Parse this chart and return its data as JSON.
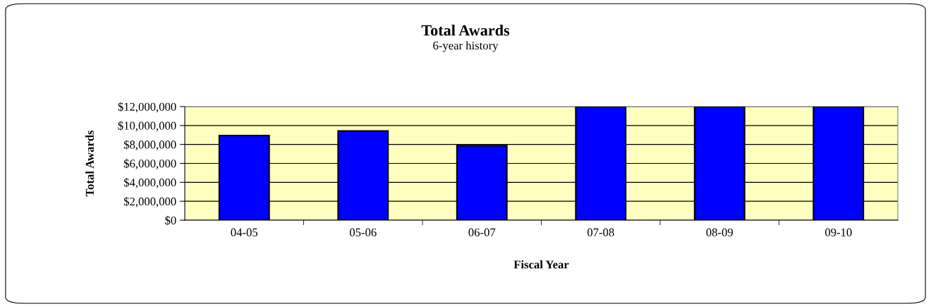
{
  "chart_data": {
    "type": "bar",
    "title": "Total Awards",
    "subtitle": "6-year history",
    "xlabel": "Fiscal Year",
    "ylabel": "Total Awards",
    "categories": [
      "04-05",
      "05-06",
      "06-07",
      "07-08",
      "08-09",
      "09-10"
    ],
    "values": [
      8950000,
      9420000,
      7870000,
      12000000,
      12000000,
      12000000
    ],
    "color": "#0000ff",
    "ylim": [
      0,
      12000000
    ],
    "yticks": [
      {
        "value": 0,
        "label": "$0"
      },
      {
        "value": 2000000,
        "label": "$2,000,000"
      },
      {
        "value": 4000000,
        "label": "$4,000,000"
      },
      {
        "value": 6000000,
        "label": "$6,000,000"
      },
      {
        "value": 8000000,
        "label": "$8,000,000"
      },
      {
        "value": 10000000,
        "label": "$10,000,000"
      },
      {
        "value": 12000000,
        "label": "$12,000,000"
      }
    ],
    "grid": "y",
    "legend": false
  }
}
